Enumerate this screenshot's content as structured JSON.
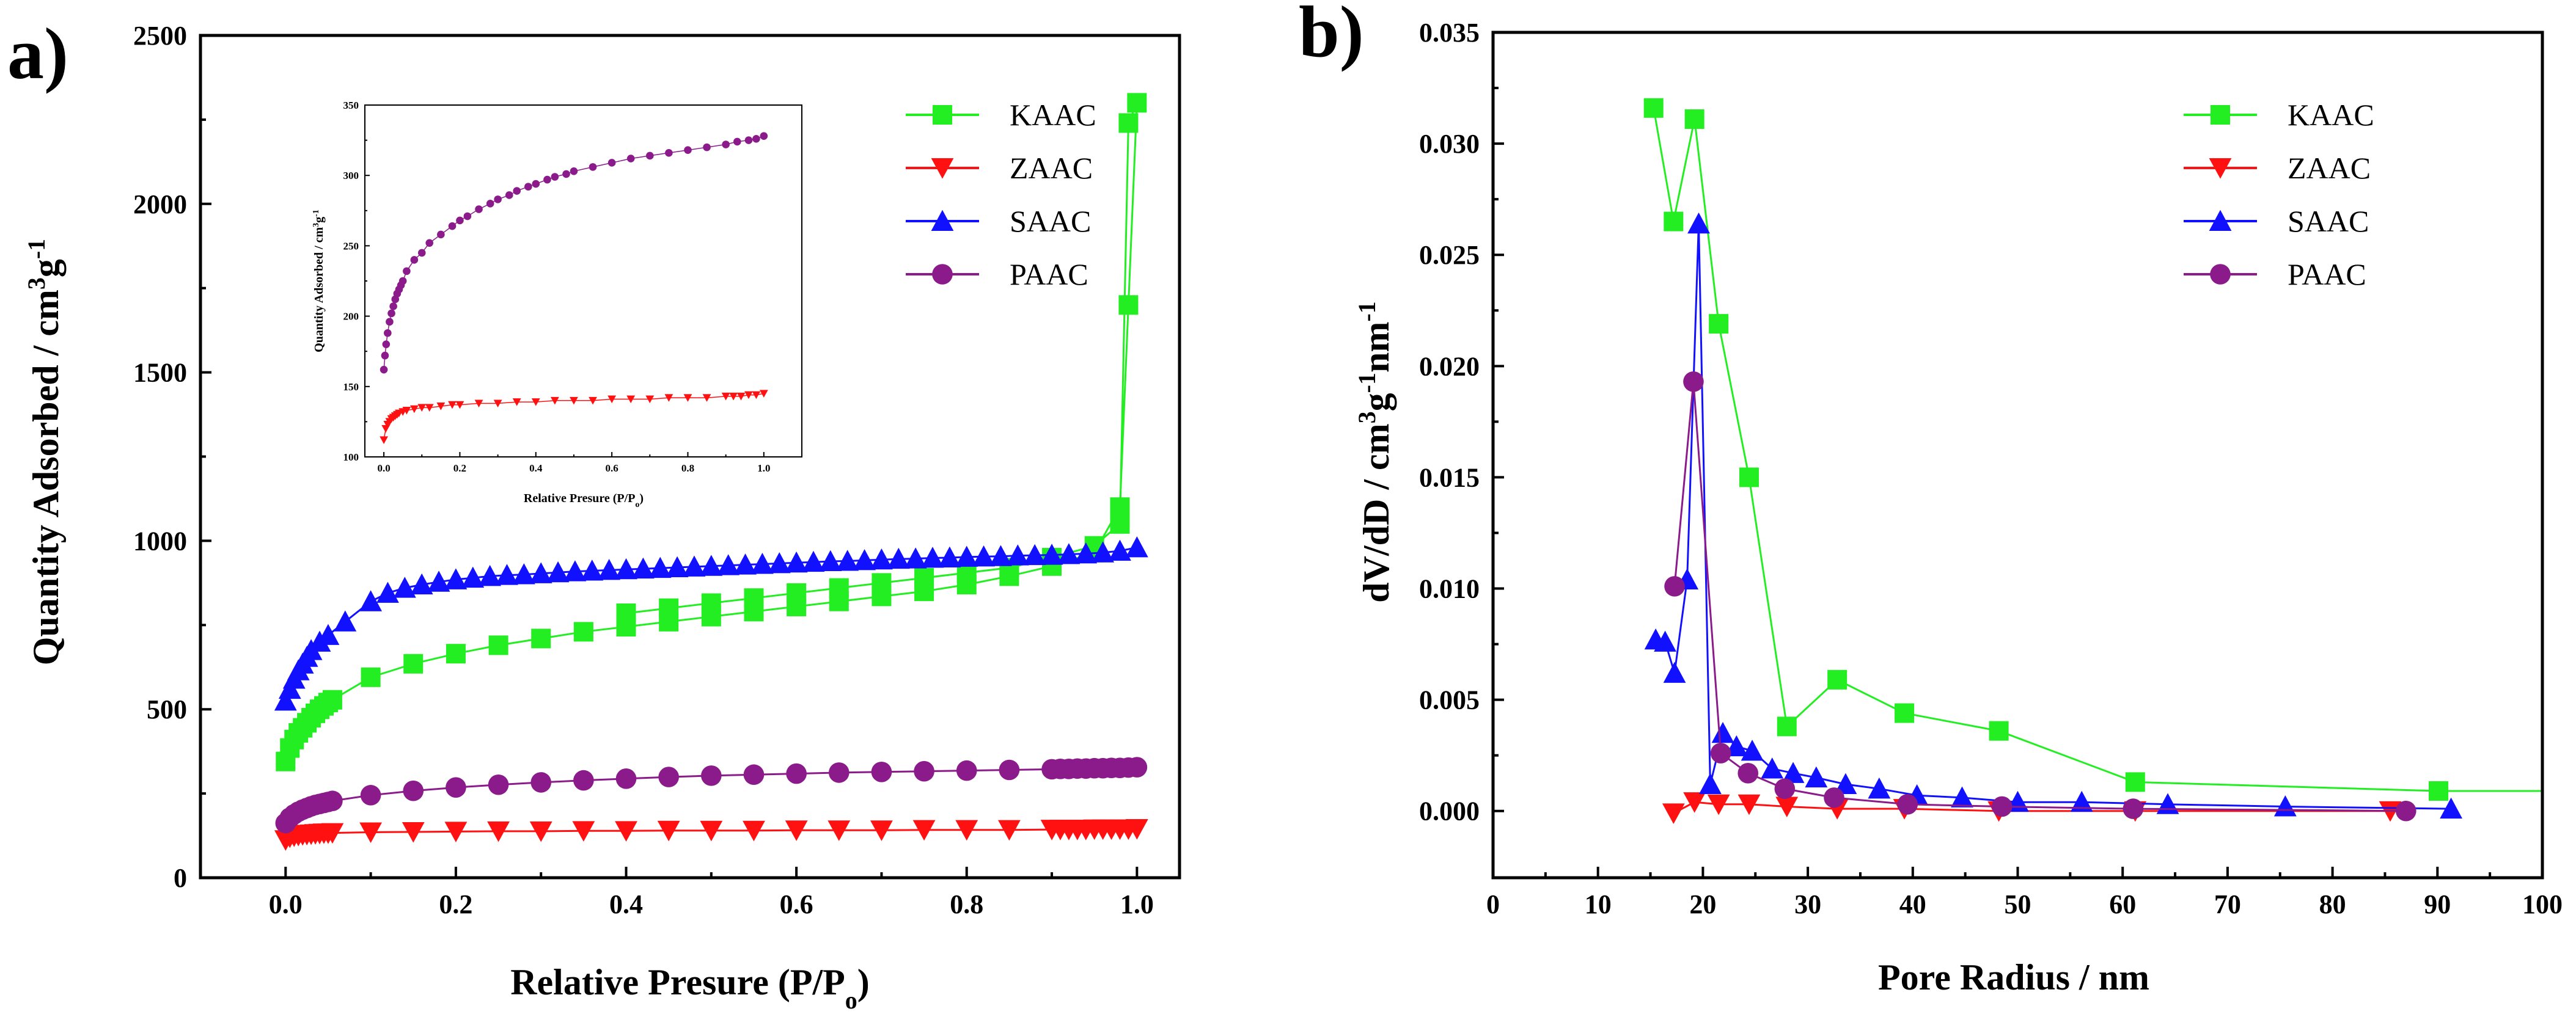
{
  "figure": {
    "panel_a_label": "a)",
    "panel_b_label": "b)"
  },
  "colors": {
    "KAAC": "#22ee22",
    "ZAAC": "#ff1111",
    "SAAC": "#1111ff",
    "PAAC": "#8b1a8b"
  },
  "chart_data": [
    {
      "id": "panel-a",
      "type": "scatter",
      "title": "",
      "xlabel": "Relative Presure (P/P",
      "xlabel_sub": "o",
      "xlabel_end": ")",
      "ylabel": "Quantity Adsorbed / cm",
      "ylabel_sup1": "3",
      "ylabel_mid": "g",
      "ylabel_sup2": "-1",
      "xlim": [
        -0.1,
        1.05
      ],
      "ylim": [
        0,
        2500
      ],
      "xticks": [
        0.0,
        0.2,
        0.4,
        0.6,
        0.8,
        1.0
      ],
      "xtick_labels": [
        "0.0",
        "0.2",
        "0.4",
        "0.6",
        "0.8",
        "1.0"
      ],
      "yticks": [
        0,
        500,
        1000,
        1500,
        2000,
        2500
      ],
      "ytick_labels": [
        "0",
        "500",
        "1000",
        "1500",
        "2000",
        "2500"
      ],
      "legend": {
        "placement": "top-right",
        "entries": [
          "KAAC",
          "ZAAC",
          "SAAC",
          "PAAC"
        ]
      },
      "series": [
        {
          "name": "KAAC",
          "marker": "square",
          "x": [
            0.0,
            0.005,
            0.01,
            0.015,
            0.02,
            0.025,
            0.03,
            0.035,
            0.04,
            0.045,
            0.05,
            0.055,
            0.1,
            0.15,
            0.2,
            0.25,
            0.3,
            0.35,
            0.4,
            0.45,
            0.5,
            0.55,
            0.6,
            0.65,
            0.7,
            0.75,
            0.8,
            0.85,
            0.9,
            0.95,
            0.98,
            0.99,
            1.0,
            0.99,
            0.98,
            0.95,
            0.9,
            0.85,
            0.8,
            0.75,
            0.7,
            0.65,
            0.6,
            0.55,
            0.5,
            0.45,
            0.4
          ],
          "y": [
            345,
            385,
            410,
            430,
            445,
            460,
            475,
            488,
            500,
            510,
            520,
            528,
            595,
            635,
            665,
            690,
            710,
            730,
            745,
            760,
            775,
            790,
            805,
            820,
            835,
            850,
            870,
            895,
            925,
            965,
            1100,
            1700,
            2300,
            2240,
            1050,
            985,
            950,
            920,
            905,
            890,
            875,
            860,
            845,
            830,
            815,
            800,
            785
          ]
        },
        {
          "name": "ZAAC",
          "marker": "triangle-down",
          "x": [
            0.0,
            0.005,
            0.01,
            0.015,
            0.02,
            0.025,
            0.03,
            0.035,
            0.04,
            0.045,
            0.05,
            0.055,
            0.1,
            0.15,
            0.2,
            0.25,
            0.3,
            0.35,
            0.4,
            0.45,
            0.5,
            0.55,
            0.6,
            0.65,
            0.7,
            0.75,
            0.8,
            0.85,
            0.9,
            0.91,
            0.92,
            0.93,
            0.94,
            0.95,
            0.96,
            0.97,
            0.98,
            0.99,
            1.0
          ],
          "y": [
            112,
            120,
            123,
            125,
            127,
            128,
            129,
            130,
            131,
            132,
            132,
            133,
            135,
            136,
            137,
            138,
            138,
            139,
            139,
            140,
            140,
            140,
            141,
            141,
            141,
            142,
            142,
            142,
            143,
            143,
            143,
            143,
            143,
            144,
            144,
            144,
            144,
            144,
            145
          ]
        },
        {
          "name": "SAAC",
          "marker": "triangle-up",
          "x": [
            0.0,
            0.005,
            0.01,
            0.015,
            0.02,
            0.025,
            0.03,
            0.04,
            0.05,
            0.07,
            0.1,
            0.12,
            0.14,
            0.16,
            0.18,
            0.2,
            0.22,
            0.24,
            0.26,
            0.28,
            0.3,
            0.32,
            0.34,
            0.36,
            0.38,
            0.4,
            0.42,
            0.44,
            0.46,
            0.48,
            0.5,
            0.52,
            0.54,
            0.56,
            0.58,
            0.6,
            0.62,
            0.64,
            0.66,
            0.68,
            0.7,
            0.72,
            0.74,
            0.76,
            0.78,
            0.8,
            0.82,
            0.84,
            0.86,
            0.88,
            0.9,
            0.92,
            0.94,
            0.96,
            0.98,
            1.0
          ],
          "y": [
            525,
            560,
            590,
            615,
            635,
            655,
            675,
            700,
            720,
            760,
            820,
            845,
            860,
            870,
            878,
            885,
            890,
            895,
            898,
            900,
            903,
            906,
            909,
            911,
            913,
            915,
            917,
            919,
            921,
            923,
            925,
            927,
            929,
            931,
            933,
            935,
            937,
            939,
            940,
            942,
            944,
            946,
            947,
            949,
            950,
            952,
            953,
            954,
            956,
            957,
            958,
            960,
            962,
            965,
            970,
            980
          ]
        },
        {
          "name": "PAAC",
          "marker": "circle",
          "x": [
            0.0,
            0.005,
            0.01,
            0.015,
            0.02,
            0.025,
            0.03,
            0.035,
            0.04,
            0.045,
            0.05,
            0.055,
            0.1,
            0.15,
            0.2,
            0.25,
            0.3,
            0.35,
            0.4,
            0.45,
            0.5,
            0.55,
            0.6,
            0.65,
            0.7,
            0.75,
            0.8,
            0.85,
            0.9,
            0.91,
            0.92,
            0.93,
            0.94,
            0.95,
            0.96,
            0.97,
            0.98,
            0.99,
            1.0
          ],
          "y": [
            162,
            178,
            188,
            196,
            202,
            207,
            212,
            216,
            219,
            222,
            225,
            228,
            245,
            258,
            268,
            276,
            283,
            289,
            294,
            299,
            303,
            306,
            309,
            312,
            314,
            316,
            318,
            320,
            322,
            323,
            323,
            324,
            324,
            325,
            325,
            326,
            326,
            327,
            328
          ]
        }
      ]
    },
    {
      "id": "panel-a-inset",
      "type": "scatter",
      "title": "",
      "xlabel": "Relative Presure (P/P",
      "xlabel_sub": "o",
      "xlabel_end": ")",
      "ylabel": "Quantity Adsorbed / cm",
      "ylabel_sup1": "3",
      "ylabel_mid": "g",
      "ylabel_sup2": "-1",
      "xlim": [
        -0.05,
        1.1
      ],
      "ylim": [
        100,
        350
      ],
      "xticks": [
        0.0,
        0.2,
        0.4,
        0.6,
        0.8,
        1.0
      ],
      "xtick_labels": [
        "0.0",
        "0.2",
        "0.4",
        "0.6",
        "0.8",
        "1.0"
      ],
      "yticks": [
        100,
        150,
        200,
        250,
        300,
        350
      ],
      "ytick_labels": [
        "100",
        "150",
        "200",
        "250",
        "300",
        "350"
      ],
      "series": [
        {
          "name": "ZAAC",
          "marker": "triangle-down",
          "x": [
            0.0,
            0.005,
            0.01,
            0.015,
            0.02,
            0.025,
            0.03,
            0.035,
            0.04,
            0.05,
            0.06,
            0.08,
            0.1,
            0.12,
            0.15,
            0.18,
            0.2,
            0.25,
            0.3,
            0.35,
            0.4,
            0.45,
            0.5,
            0.55,
            0.6,
            0.65,
            0.7,
            0.75,
            0.8,
            0.85,
            0.9,
            0.92,
            0.94,
            0.96,
            0.98,
            1.0
          ],
          "y": [
            112,
            120,
            123,
            125,
            127,
            128,
            129,
            130,
            131,
            132,
            133,
            134,
            135,
            135,
            136,
            137,
            137,
            138,
            138,
            139,
            139,
            140,
            140,
            140,
            141,
            141,
            141,
            142,
            142,
            142,
            143,
            143,
            143,
            144,
            144,
            145
          ]
        },
        {
          "name": "PAAC",
          "marker": "circle",
          "x": [
            0.0,
            0.003,
            0.006,
            0.01,
            0.015,
            0.02,
            0.025,
            0.03,
            0.035,
            0.04,
            0.045,
            0.05,
            0.06,
            0.08,
            0.1,
            0.12,
            0.15,
            0.18,
            0.2,
            0.22,
            0.25,
            0.28,
            0.3,
            0.33,
            0.35,
            0.38,
            0.4,
            0.43,
            0.45,
            0.48,
            0.5,
            0.55,
            0.6,
            0.65,
            0.7,
            0.75,
            0.8,
            0.85,
            0.9,
            0.93,
            0.96,
            0.98,
            1.0
          ],
          "y": [
            162,
            172,
            180,
            188,
            196,
            202,
            207,
            212,
            216,
            219,
            222,
            225,
            232,
            240,
            245,
            252,
            258,
            264,
            268,
            271,
            276,
            280,
            283,
            286,
            289,
            292,
            294,
            297,
            299,
            301,
            303,
            306,
            309,
            312,
            314,
            316,
            318,
            320,
            322,
            324,
            325,
            326,
            328
          ]
        }
      ]
    },
    {
      "id": "panel-b",
      "type": "line",
      "title": "",
      "xlabel": "Pore Radius / nm",
      "ylabel": "dV/dD / cm",
      "ylabel_sup1": "3",
      "ylabel_mid": "g",
      "ylabel_sup2": "-1",
      "ylabel_mid2": "nm",
      "ylabel_sup3": "-1",
      "xlim": [
        0,
        100
      ],
      "ylim": [
        -0.003,
        0.035
      ],
      "xticks": [
        0,
        10,
        20,
        30,
        40,
        50,
        60,
        70,
        80,
        90,
        100
      ],
      "xtick_labels": [
        "0",
        "10",
        "20",
        "30",
        "40",
        "50",
        "60",
        "70",
        "80",
        "90",
        "100"
      ],
      "yticks": [
        0.0,
        0.005,
        0.01,
        0.015,
        0.02,
        0.025,
        0.03,
        0.035
      ],
      "ytick_labels": [
        "0.000",
        "0.005",
        "0.010",
        "0.015",
        "0.020",
        "0.025",
        "0.030",
        "0.035"
      ],
      "legend": {
        "placement": "top-right",
        "entries": [
          "KAAC",
          "ZAAC",
          "SAAC",
          "PAAC"
        ]
      },
      "series": [
        {
          "name": "KAAC",
          "marker": "square",
          "x": [
            15.3,
            17.2,
            19.2,
            21.5,
            24.4,
            28.0,
            32.8,
            39.2,
            48.2,
            61.2,
            90.1,
            100
          ],
          "y": [
            0.0316,
            0.0265,
            0.0311,
            0.0219,
            0.015,
            0.0038,
            0.0059,
            0.0044,
            0.0036,
            0.0013,
            0.0009,
            0.0009
          ],
          "marked": [
            true,
            true,
            true,
            true,
            true,
            true,
            true,
            true,
            true,
            true,
            true,
            false
          ]
        },
        {
          "name": "ZAAC",
          "marker": "triangle-down",
          "x": [
            17.2,
            19.2,
            21.5,
            24.4,
            28.0,
            32.8,
            39.2,
            48.2,
            61.2,
            85.5
          ],
          "y": [
            -0.0001,
            0.0004,
            0.0003,
            0.0003,
            0.0002,
            0.0001,
            0.0001,
            0.0,
            0.0,
            0.0
          ]
        },
        {
          "name": "SAAC",
          "marker": "triangle-up",
          "x": [
            15.5,
            16.4,
            17.3,
            18.5,
            19.6,
            20.7,
            21.9,
            23.2,
            24.7,
            26.6,
            28.6,
            30.8,
            33.6,
            36.8,
            40.4,
            44.7,
            50.0,
            56.1,
            64.3,
            75.5,
            91.3
          ],
          "y": [
            0.0077,
            0.0076,
            0.0062,
            0.0104,
            0.0264,
            0.0012,
            0.0035,
            0.0029,
            0.0027,
            0.0019,
            0.0017,
            0.0015,
            0.0012,
            0.001,
            0.0007,
            0.0006,
            0.0004,
            0.0004,
            0.0003,
            0.0002,
            0.0001
          ]
        },
        {
          "name": "PAAC",
          "marker": "circle",
          "x": [
            17.3,
            19.1,
            21.7,
            24.3,
            27.8,
            32.5,
            39.5,
            48.5,
            61.0,
            87.0
          ],
          "y": [
            0.0101,
            0.0193,
            0.0026,
            0.0017,
            0.001,
            0.0006,
            0.0003,
            0.0002,
            0.0001,
            0.0
          ]
        }
      ]
    }
  ]
}
